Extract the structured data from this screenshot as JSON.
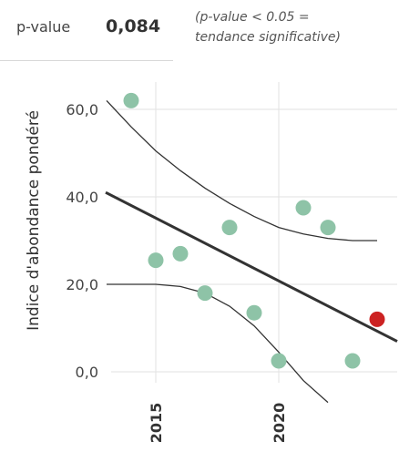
{
  "pvalue": {
    "label": "p-value",
    "value": "0,084",
    "note_line1": "(p-value < 0.05 =",
    "note_line2": "tendance significative)"
  },
  "chart_data": {
    "type": "scatter",
    "title": "",
    "xlabel": "",
    "ylabel": "Indice d'abondance pondéré",
    "xlim": [
      2013,
      2024
    ],
    "ylim": [
      -5,
      65
    ],
    "y_ticks": [
      0,
      20,
      40,
      60
    ],
    "y_tick_labels": [
      "0,0",
      "20,0",
      "40,0",
      "60,0"
    ],
    "x_ticks": [
      2015,
      2020
    ],
    "x_tick_labels": [
      "2015",
      "2020"
    ],
    "grid": true,
    "points": [
      {
        "x": 2014,
        "y": 62
      },
      {
        "x": 2015,
        "y": 25.5
      },
      {
        "x": 2016,
        "y": 27
      },
      {
        "x": 2017,
        "y": 18
      },
      {
        "x": 2018,
        "y": 33
      },
      {
        "x": 2019,
        "y": 13.5
      },
      {
        "x": 2020,
        "y": 2.5
      },
      {
        "x": 2021,
        "y": 37.5
      },
      {
        "x": 2022,
        "y": 33
      },
      {
        "x": 2023,
        "y": 2.5
      },
      {
        "x": 2024,
        "y": 12,
        "highlight": true
      }
    ],
    "trend": {
      "x": [
        2013,
        2024
      ],
      "y": [
        41,
        8
      ]
    },
    "upper_band": {
      "x": [
        2013,
        2014,
        2015,
        2016,
        2017,
        2018,
        2019,
        2020,
        2021,
        2022,
        2023,
        2024
      ],
      "y": [
        62,
        56,
        50.5,
        46,
        42,
        38.5,
        35.5,
        33,
        31.5,
        30.5,
        30,
        30
      ]
    },
    "lower_band": {
      "x": [
        2013,
        2014,
        2015,
        2016,
        2017,
        2018,
        2019,
        2020,
        2021,
        2022
      ],
      "y": [
        20,
        20,
        20,
        19.5,
        18,
        15,
        10.5,
        4.5,
        -2,
        -7
      ]
    },
    "colors": {
      "point": "#8ec3a7",
      "highlight": "#cc2222",
      "trend": "#333333",
      "band": "#333333",
      "grid": "#e2e2e2"
    }
  }
}
